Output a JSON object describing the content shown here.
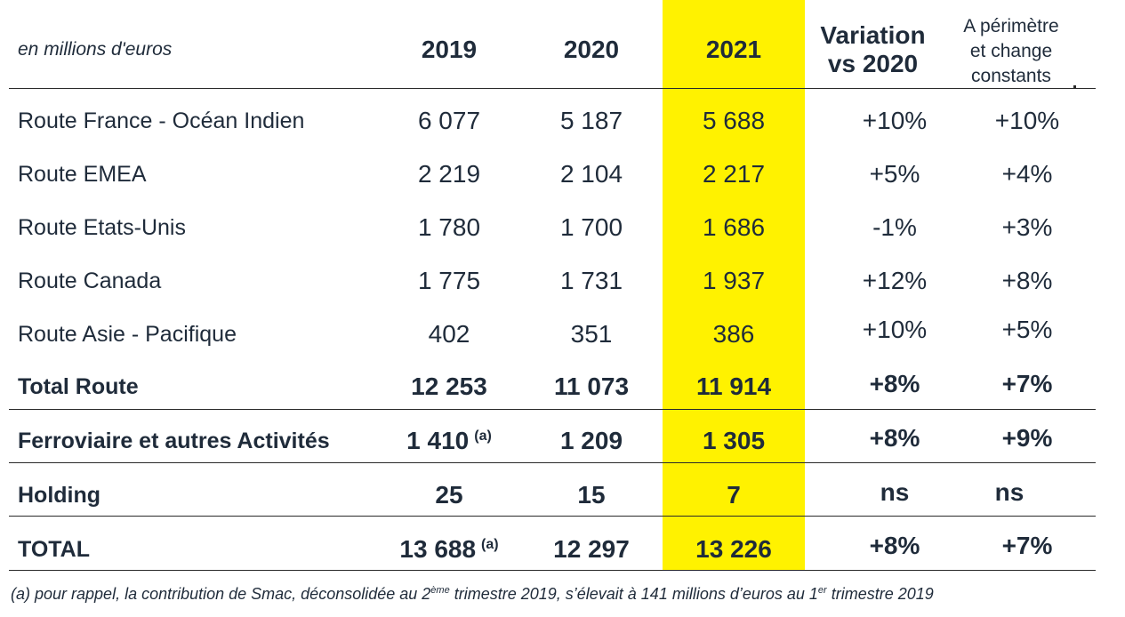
{
  "header": {
    "unit": "en millions d'euros",
    "y2019": "2019",
    "y2020": "2020",
    "y2021": "2021",
    "variation_l1": "Variation",
    "variation_l2": "vs 2020",
    "perimetre_l1": "A périmètre",
    "perimetre_l2": "et change",
    "perimetre_l3": "constants"
  },
  "highlight_color": "#fff200",
  "rows": [
    {
      "label": "Route France - Océan Indien",
      "v2019": "6 077",
      "v2020": "5 187",
      "v2021": "5 688",
      "var": "+10%",
      "pcc": "+10%",
      "note": ""
    },
    {
      "label": "Route EMEA",
      "v2019": "2 219",
      "v2020": "2 104",
      "v2021": "2 217",
      "var": "+5%",
      "pcc": "+4%",
      "note": ""
    },
    {
      "label": "Route Etats-Unis",
      "v2019": "1 780",
      "v2020": "1 700",
      "v2021": "1 686",
      "var": "-1%",
      "pcc": "+3%",
      "note": ""
    },
    {
      "label": "Route Canada",
      "v2019": "1 775",
      "v2020": "1 731",
      "v2021": "1 937",
      "var": "+12%",
      "pcc": "+8%",
      "note": ""
    },
    {
      "label": "Route Asie - Pacifique",
      "v2019": "402",
      "v2020": "351",
      "v2021": "386",
      "var": "+10%",
      "pcc": "+5%",
      "note": ""
    },
    {
      "label": "Total Route",
      "v2019": "12 253",
      "v2020": "11 073",
      "v2021": "11 914",
      "var": "+8%",
      "pcc": "+7%",
      "note": ""
    },
    {
      "label": "Ferroviaire et autres Activités",
      "v2019": "1 410",
      "v2020": "1 209",
      "v2021": "1 305",
      "var": "+8%",
      "pcc": "+9%",
      "note": "(a)"
    },
    {
      "label": "Holding",
      "v2019": "25",
      "v2020": "15",
      "v2021": "7",
      "var": "ns",
      "pcc": "ns",
      "note": ""
    },
    {
      "label": "TOTAL",
      "v2019": "13 688",
      "v2020": "12 297",
      "v2021": "13 226",
      "var": "+8%",
      "pcc": "+7%",
      "note": "(a)"
    }
  ],
  "footnote": {
    "part1": "(a) pour rappel, la contribution de Smac, déconsolidée au 2",
    "sup1": "ème",
    "part2": " trimestre 2019, s’élevait à 141 millions d’euros au 1",
    "sup2": "er",
    "part3": " trimestre 2019"
  }
}
